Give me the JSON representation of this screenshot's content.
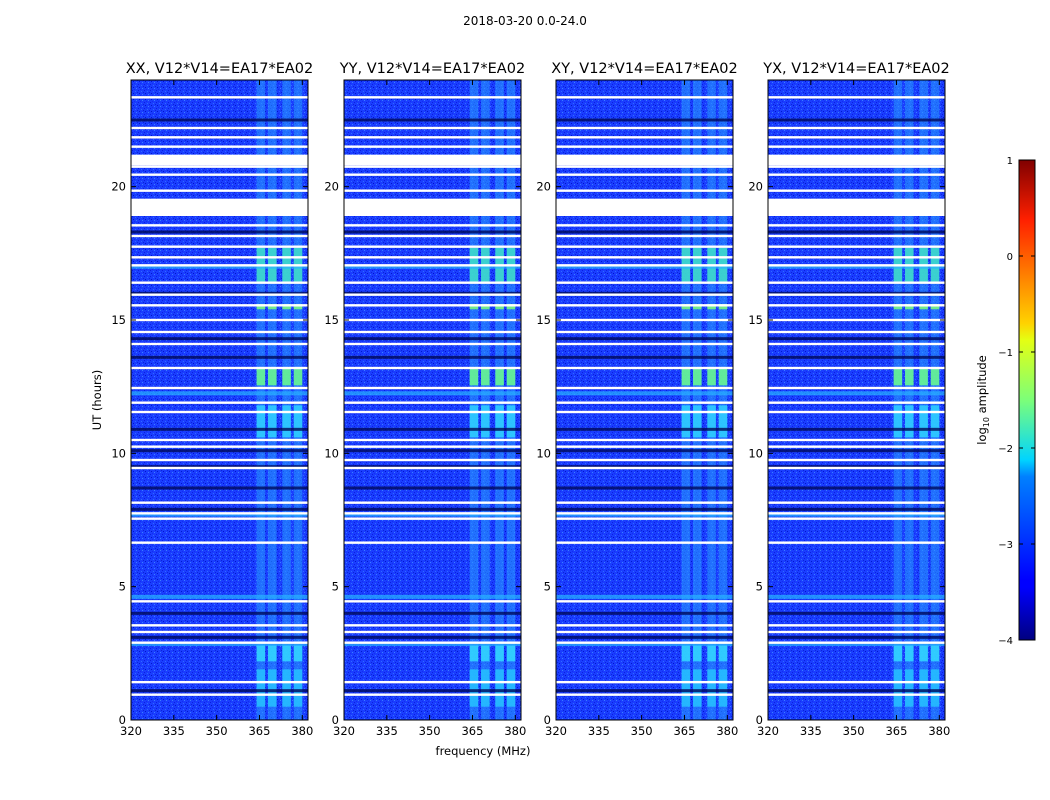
{
  "figure": {
    "suptitle": "2018-03-20 0.0-24.0"
  },
  "chart_data": {
    "type": "heatmap",
    "title": "2018-03-20 0.0-24.0",
    "xlabel": "frequency (MHz)",
    "ylabel": "UT (hours)",
    "xlim": [
      320,
      382
    ],
    "ylim": [
      0,
      24
    ],
    "xticks": [
      "320",
      "335",
      "350",
      "365",
      "380"
    ],
    "yticks": [
      "0",
      "5",
      "10",
      "15",
      "20"
    ],
    "panels": [
      {
        "title": "XX, V12*V14=EA17*EA02"
      },
      {
        "title": "YY, V12*V14=EA17*EA02"
      },
      {
        "title": "XY, V12*V14=EA17*EA02"
      },
      {
        "title": "YX, V12*V14=EA17*EA02"
      }
    ],
    "colorbar": {
      "label_prefix": "log",
      "label_sub": "10",
      "label_suffix": " amplitude",
      "range": [
        -4,
        1
      ],
      "ticks": [
        "1",
        "0",
        "−1",
        "−2",
        "−3",
        "−4"
      ],
      "colormap": "jet"
    },
    "flagged_ut_hours": [
      0.95,
      1.42,
      2.9,
      3.3,
      3.55,
      4.45,
      6.65,
      7.55,
      7.75,
      8.15,
      9.45,
      9.75,
      10.25,
      10.5,
      11.55,
      11.9,
      12.45,
      13.2,
      14.1,
      14.55,
      15.0,
      15.55,
      15.95,
      16.4,
      17.05,
      17.35,
      17.75,
      18.15,
      18.55,
      19.25,
      19.85,
      20.45,
      20.75,
      21.5,
      21.85,
      22.2,
      23.35
    ],
    "flagged_ut_blocks": [
      [
        18.9,
        19.55
      ],
      [
        20.8,
        21.2
      ]
    ],
    "rfi_bands_mhz": [
      [
        364,
        367
      ],
      [
        368,
        371
      ],
      [
        373,
        376
      ],
      [
        377,
        380
      ]
    ],
    "dark_row_hours": [
      1.1,
      3.1,
      4.0,
      7.9,
      8.7,
      9.5,
      10.1,
      10.9,
      13.6,
      14.3,
      16.0,
      18.3,
      22.5
    ],
    "bright_row_hours": [
      2.85,
      4.62,
      7.7,
      12.25,
      17.0
    ]
  }
}
